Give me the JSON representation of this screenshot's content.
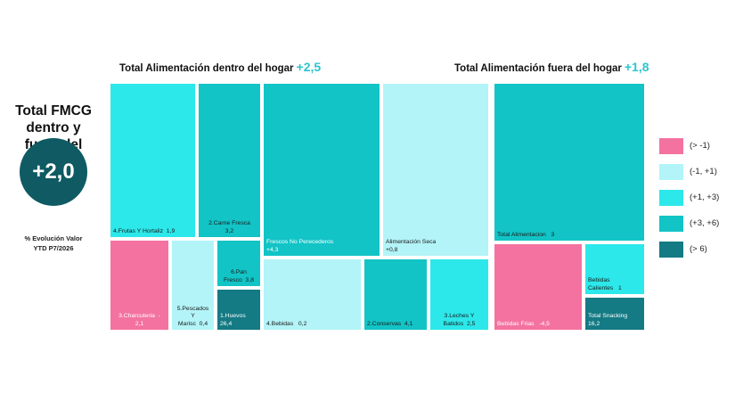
{
  "headers": {
    "dentro": {
      "label": "Total Alimentación dentro del hogar",
      "value": "+2,5"
    },
    "fuera": {
      "label": "Total Alimentación fuera del hogar",
      "value": "+1,8"
    }
  },
  "total": {
    "title": "Total FMCG dentro y fuera del hogar",
    "value": "+2,0",
    "subtitle_line1": "% Evolución Valor",
    "subtitle_line2": "YTD P7/2026"
  },
  "legend": [
    {
      "label": "(> -1)",
      "color": "#f472a0"
    },
    {
      "label": "(-1, +1)",
      "color": "#b3f4f8"
    },
    {
      "label": "(+1, +3)",
      "color": "#2ce8ea"
    },
    {
      "label": "(+3, +6)",
      "color": "#12c4c6"
    },
    {
      "label": "(> 6)",
      "color": "#147a84"
    }
  ],
  "chart_data": {
    "type": "treemap",
    "groups": [
      {
        "name": "Total Alimentación dentro del hogar",
        "value": 2.5,
        "items": [
          {
            "label": "4.Frutas Y Hortaliz  1,9",
            "value": 1.9,
            "class": "(+1, +3)"
          },
          {
            "label": "2.Carne Fresca\n3,2",
            "value": 3.2,
            "class": "(+3, +6)"
          },
          {
            "label": "3.Charcuteria  -\n2,1",
            "value": -2.1,
            "class": "(> -1)"
          },
          {
            "label": "5.Pescados Y\nMarisc  0,4",
            "value": 0.4,
            "class": "(-1, +1)"
          },
          {
            "label": "6.Pan\nFresco  3,8",
            "value": 3.8,
            "class": "(+3, +6)"
          },
          {
            "label": "1.Huevos\n26,4",
            "value": 26.4,
            "class": "(> 6)"
          },
          {
            "label": "Frescos No Perecederos\n+4,3",
            "value": 4.3,
            "class": "(+3, +6)"
          },
          {
            "label": "Alimentación Seca\n+0,8",
            "value": 0.8,
            "class": "(-1, +1)"
          },
          {
            "label": "4.Bebidas   0,2",
            "value": 0.2,
            "class": "(-1, +1)"
          },
          {
            "label": "2.Conservas  4,1",
            "value": 4.1,
            "class": "(+3, +6)"
          },
          {
            "label": "3.Leches Y\nBatidos  2,5",
            "value": 2.5,
            "class": "(+1, +3)"
          }
        ]
      },
      {
        "name": "Total Alimentación fuera del hogar",
        "value": 1.8,
        "items": [
          {
            "label": "Total Alimentacion   3",
            "value": 3,
            "class": "(+3, +6)"
          },
          {
            "label": "Bebidas Frias   -4,5",
            "value": -4.5,
            "class": "(> -1)"
          },
          {
            "label": "Bebidas\nCalientes   1",
            "value": 1,
            "class": "(+1, +3)"
          },
          {
            "label": "Total Snacking\n16,2",
            "value": 16.2,
            "class": "(> 6)"
          }
        ]
      }
    ]
  }
}
